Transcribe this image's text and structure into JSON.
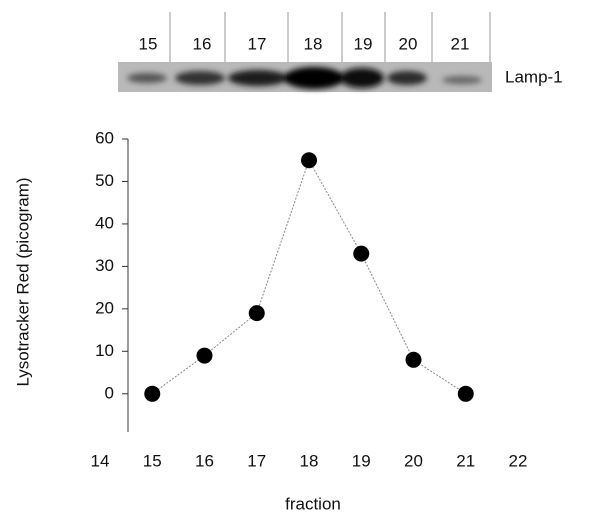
{
  "blot": {
    "lanes": [
      "15",
      "16",
      "17",
      "18",
      "19",
      "20",
      "21"
    ],
    "label": "Lamp-1"
  },
  "chart_data": {
    "type": "line",
    "y_label": "Lysotracker Red (picogram)",
    "x_label": "fraction",
    "x": [
      15,
      16,
      17,
      18,
      19,
      20,
      21
    ],
    "series": [
      {
        "color": "#000000",
        "values": [
          0,
          9,
          19,
          55,
          33,
          8,
          0
        ]
      }
    ],
    "xlim": [
      14,
      22
    ],
    "xticks": [
      14,
      15,
      16,
      17,
      18,
      19,
      20,
      21,
      22
    ],
    "ylim": [
      -9,
      60
    ],
    "yticks": [
      0,
      10,
      20,
      30,
      40,
      50,
      60
    ]
  }
}
